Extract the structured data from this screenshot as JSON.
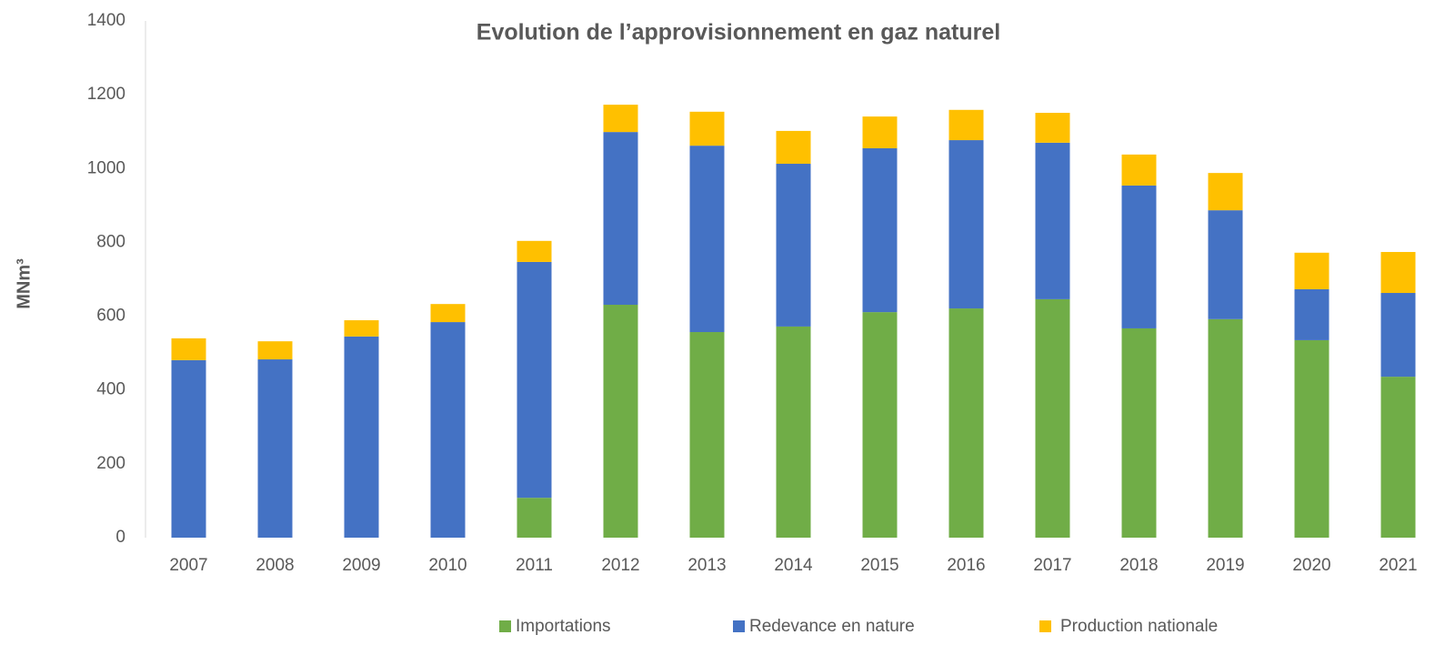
{
  "chart_data": {
    "type": "stacked_bar",
    "title": "Evolution de l’approvisionnement en gaz naturel",
    "y_label": "MNm³",
    "categories": [
      "2007",
      "2008",
      "2009",
      "2010",
      "2011",
      "2012",
      "2013",
      "2014",
      "2015",
      "2016",
      "2017",
      "2018",
      "2019",
      "2020",
      "2021"
    ],
    "series": [
      {
        "name": "Importations",
        "color": "#70ad47",
        "values": [
          0,
          0,
          0,
          0,
          108,
          631,
          557,
          572,
          611,
          621,
          646,
          567,
          592,
          535,
          436
        ]
      },
      {
        "name": "Redevance en nature",
        "color": "#4472c4",
        "values": [
          481,
          483,
          545,
          584,
          639,
          468,
          505,
          441,
          444,
          456,
          424,
          387,
          295,
          138,
          227
        ]
      },
      {
        "name": "Production nationale",
        "color": "#ffc000",
        "values": [
          59,
          49,
          44,
          49,
          57,
          74,
          92,
          89,
          86,
          82,
          81,
          84,
          101,
          99,
          111
        ]
      }
    ],
    "ylim": [
      0,
      1400
    ],
    "yticks": [
      0,
      200,
      400,
      600,
      800,
      1000,
      1200,
      1400
    ],
    "grid": false,
    "legend": "bottom"
  }
}
